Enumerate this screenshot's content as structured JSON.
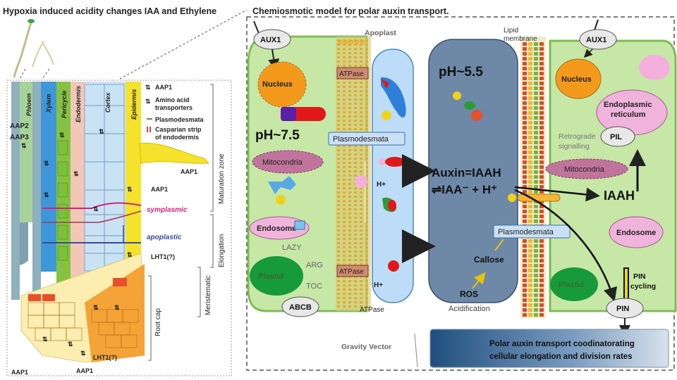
{
  "left": {
    "title": "Hypoxia induced acidity changes IAA and Ethylene",
    "tissues": [
      "Phloem",
      "Xylem",
      "Pericycle",
      "Endodermis",
      "Cortex",
      "Epidermis"
    ],
    "legend": {
      "aap1": "AAP1",
      "amino1": "Amino acid",
      "amino2": "transporters",
      "plasmo": "Plasmodesmata",
      "casp1": "Casparian strip",
      "casp2": "of endodermis"
    },
    "labels": {
      "aap2": "AAP2",
      "aap3": "AAP3",
      "aap1_hair": "AAP1",
      "aap1_epi": "AAP1",
      "symplasmic": "symplasmic",
      "apoplastic": "apoplastic",
      "lht1_right": "LHT1(?)",
      "lht1_bottom": "LHT1(?)",
      "aap1_bl": "AAP1",
      "aap1_bm": "AAP1"
    },
    "zones": [
      "Maturation zone",
      "Elongation",
      "Meristematic",
      "Root cap"
    ]
  },
  "right": {
    "title": "Chemiosmotic model for polar auxin transport.",
    "apoplast": "Apoplast",
    "lipid1": "Lipid",
    "lipid2": "membrane",
    "aux1_left": "AUX1",
    "aux1_right": "AUX1",
    "nucleus_left": "Nucleus",
    "nucleus_right": "Nucleus",
    "atpase_top": "ATPase",
    "atpase_bottom": "ATPase",
    "atpase_label": "ATPase",
    "ph_left": "pH~7.5",
    "ph_center": "pH~5.5",
    "plasmo_left": "Plasmodesmata",
    "plasmo_right": "Plasmodesmata",
    "mito_left": "Mitocondria",
    "mito_right": "Mitocondria",
    "endosome_left": "Endosome",
    "endosome_right": "Endosome",
    "lazy": "LAZY",
    "arg": "ARG",
    "toc": "TOC",
    "plastid_left": "Plastid",
    "plastid_right": "Plastid",
    "abcb": "ABCB",
    "hplus1": "H+",
    "hplus2": "H+",
    "auxin_eq1": "Auxin=IAAH",
    "auxin_eq2": "⇌IAA⁻ + H⁺",
    "callose": "Callose",
    "ros": "ROS",
    "acidification": "Acidification",
    "er1": "Endoplasmic",
    "er2": "reticulum",
    "pil": "PIL",
    "retro1": "Retrograde",
    "retro2": "signalling",
    "iaah": "IAAH",
    "pin": "PIN",
    "pin_cycling1": "PIN",
    "pin_cycling2": "cycling",
    "gravity": "Gravity Vector",
    "polar1": "Polar auxin transport coodinatorating",
    "polar2": "cellular elongation and division rates"
  }
}
